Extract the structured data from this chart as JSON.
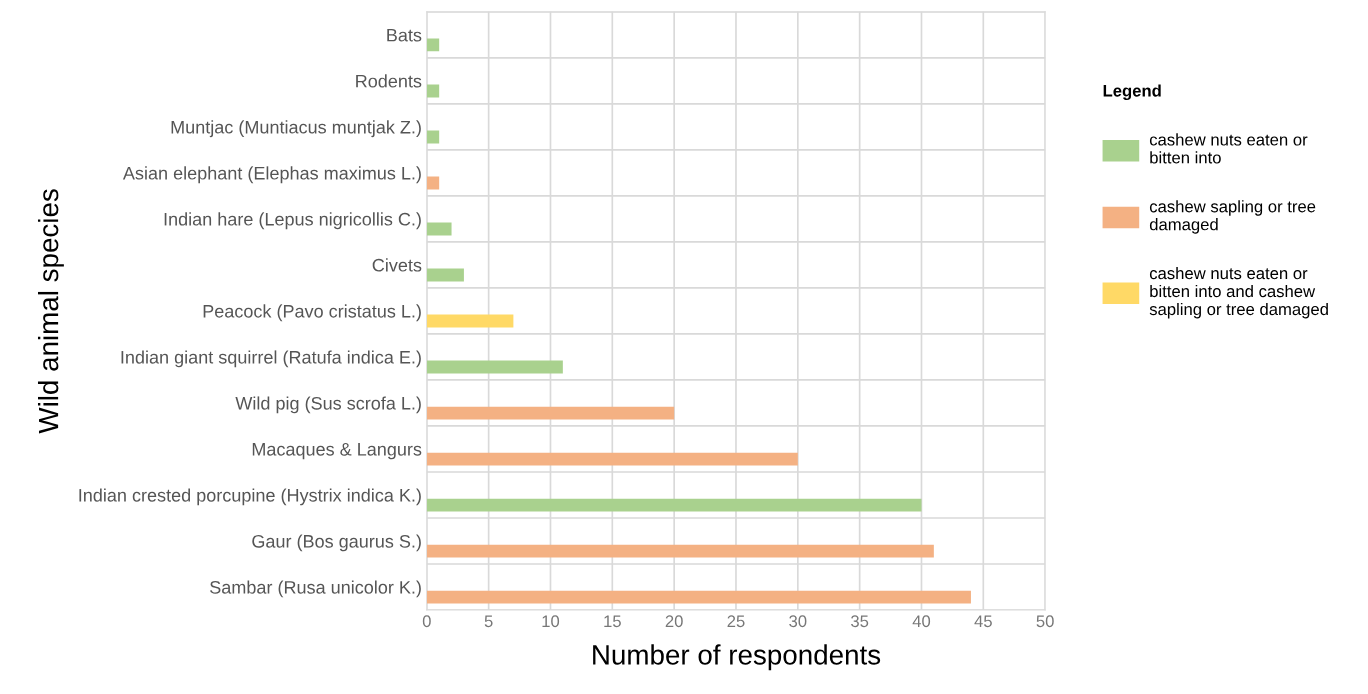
{
  "chart_data": {
    "type": "bar",
    "orientation": "horizontal",
    "xlabel": "Number of respondents",
    "ylabel": "Wild animal species",
    "legend_title": "Legend",
    "legend": "right",
    "grid": true,
    "categories": [
      "Bats",
      "Rodents",
      "Muntjac (Muntiacus muntjak Z.)",
      "Asian elephant (Elephas maximus L.)",
      "Indian hare (Lepus nigricollis C.)",
      "Civets",
      "Peacock (Pavo cristatus L.)",
      "Indian giant squirrel (Ratufa indica E.)",
      "Wild pig (Sus scrofa L.)",
      "Macaques & Langurs",
      "Indian crested porcupine (Hystrix indica K.)",
      "Gaur (Bos gaurus S.)",
      "Sambar (Rusa unicolor K.)"
    ],
    "series": [
      {
        "name": "cashew nuts eaten or bitten into",
        "color": "#a9d18e",
        "values": [
          1,
          1,
          1,
          null,
          2,
          3,
          null,
          11,
          null,
          null,
          40,
          null,
          null
        ]
      },
      {
        "name": "cashew sapling or tree damaged",
        "color": "#f4b183",
        "values": [
          null,
          null,
          null,
          1,
          null,
          null,
          null,
          null,
          20,
          30,
          null,
          41,
          44
        ]
      },
      {
        "name": "cashew nuts eaten or bitten into and cashew sapling or tree damaged",
        "color": "#ffd966",
        "values": [
          null,
          null,
          null,
          null,
          null,
          null,
          7,
          null,
          null,
          null,
          null,
          null,
          null
        ]
      }
    ],
    "xlim": [
      0,
      50
    ],
    "xticks": [
      0,
      5,
      10,
      15,
      20,
      25,
      30,
      35,
      40,
      45,
      50
    ]
  }
}
